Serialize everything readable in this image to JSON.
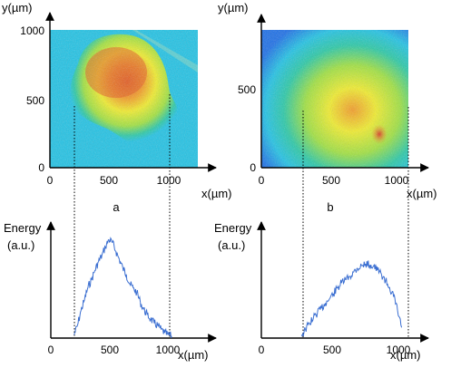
{
  "chart_data": [
    {
      "panel": "a",
      "type": "heatmap",
      "xlabel": "x(µm)",
      "ylabel": "y(µm)",
      "xticks": [
        "0",
        "500",
        "1000"
      ],
      "yticks": [
        "0",
        "500",
        "1000"
      ],
      "xlim": [
        0,
        1250
      ],
      "ylim": [
        0,
        1050
      ],
      "colors": [
        "#1ec3e6",
        "#27c9a6",
        "#9fe23e",
        "#f2ee2a",
        "#f49b24",
        "#e45a1f"
      ],
      "spot": {
        "center_x": 530,
        "center_y": 630,
        "x_extent": [
          190,
          1060
        ],
        "y_extent": [
          230,
          980
        ],
        "hot_region_x": [
          300,
          800
        ],
        "hot_region_y": [
          560,
          980
        ]
      }
    },
    {
      "panel": "a",
      "type": "line",
      "xlabel": "x(µm)",
      "ylabel": "Energy\n(a.u.)",
      "xticks": [
        "0",
        "500",
        "1000"
      ],
      "xlim": [
        0,
        1250
      ],
      "ylim": [
        0,
        1
      ],
      "series": [
        {
          "color": "#3a6ed1",
          "x": [
            200,
            230,
            260,
            290,
            320,
            350,
            380,
            410,
            440,
            470,
            500,
            530,
            560,
            590,
            620,
            650,
            680,
            710,
            740,
            770,
            800,
            830,
            860,
            890,
            920,
            950,
            980,
            1010,
            1040
          ],
          "y": [
            0.03,
            0.12,
            0.26,
            0.36,
            0.48,
            0.55,
            0.64,
            0.72,
            0.78,
            0.86,
            0.93,
            0.9,
            0.82,
            0.74,
            0.66,
            0.6,
            0.51,
            0.47,
            0.43,
            0.34,
            0.27,
            0.22,
            0.18,
            0.14,
            0.12,
            0.08,
            0.05,
            0.03,
            0.02
          ]
        }
      ]
    },
    {
      "panel": "b",
      "type": "heatmap",
      "xlabel": "x(µm)",
      "ylabel": "y(µm)",
      "xticks": [
        "0",
        "500",
        "1000"
      ],
      "yticks": [
        "0",
        "500"
      ],
      "xlim": [
        0,
        1050
      ],
      "ylim": [
        0,
        1000
      ],
      "colors": [
        "#1a6ee8",
        "#1ec3e6",
        "#27c9a6",
        "#9fe23e",
        "#f2ee2a",
        "#f49b24",
        "#e45a1f"
      ],
      "spot": {
        "center_x": 720,
        "center_y": 400,
        "x_extent": [
          300,
          1050
        ],
        "y_extent": [
          60,
          920
        ],
        "hot_spot_x": 860,
        "hot_spot_y": 250
      }
    },
    {
      "panel": "b",
      "type": "line",
      "xlabel": "x(µm)",
      "ylabel": "Energy\n(a.u.)",
      "xticks": [
        "0",
        "500",
        "1000"
      ],
      "xlim": [
        0,
        1250
      ],
      "ylim": [
        0,
        1
      ],
      "series": [
        {
          "color": "#3a6ed1",
          "x": [
            300,
            330,
            360,
            390,
            420,
            450,
            480,
            510,
            540,
            570,
            600,
            630,
            660,
            690,
            720,
            750,
            780,
            810,
            840,
            870,
            900,
            930,
            960,
            990,
            1020,
            1050
          ],
          "y": [
            0.03,
            0.08,
            0.14,
            0.19,
            0.24,
            0.28,
            0.33,
            0.37,
            0.42,
            0.47,
            0.52,
            0.55,
            0.58,
            0.62,
            0.66,
            0.68,
            0.7,
            0.69,
            0.68,
            0.64,
            0.6,
            0.54,
            0.48,
            0.39,
            0.26,
            0.1
          ]
        }
      ]
    }
  ],
  "panel_labels": [
    "a",
    "b"
  ],
  "axis_text": {
    "top_left_ylabel": "y(µm)",
    "top_right_ylabel": "y(µm)",
    "x_unit": "x(µm)",
    "energy_1": "Energy",
    "energy_2": "(a.u.)"
  }
}
